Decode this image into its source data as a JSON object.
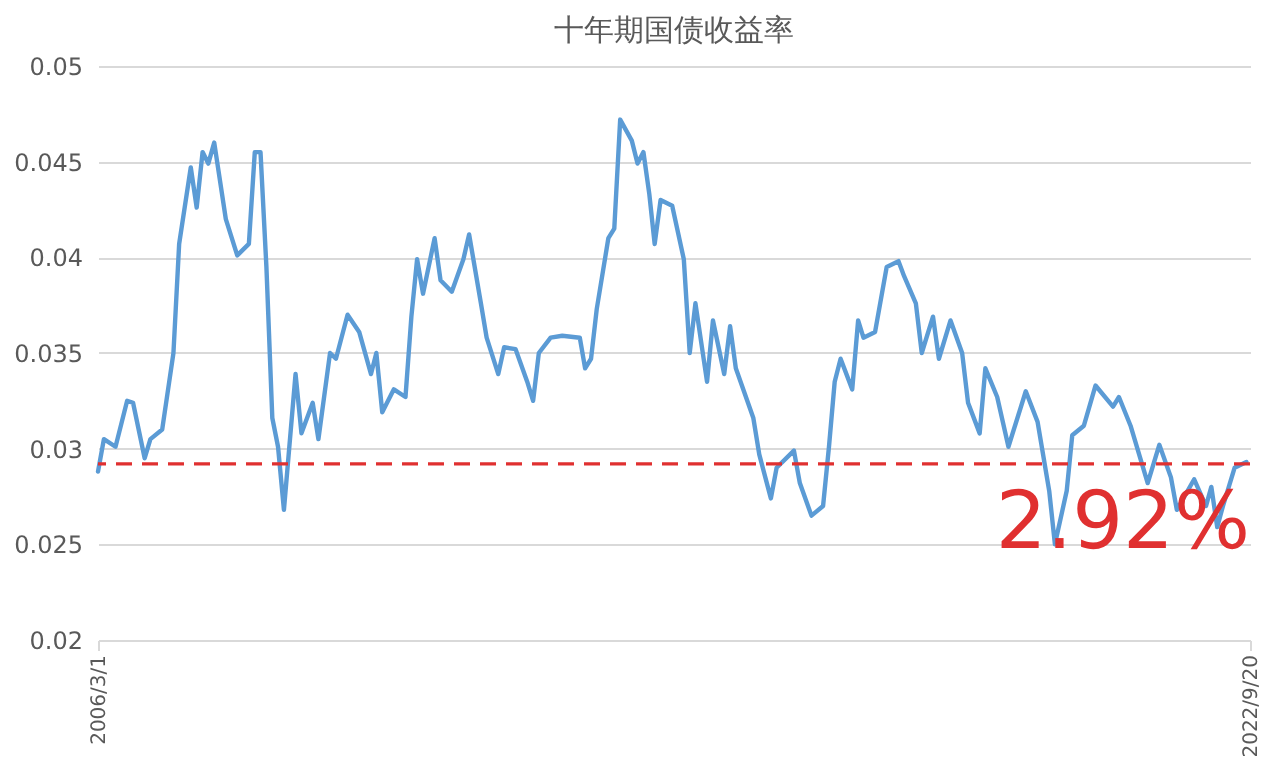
{
  "chart_data": {
    "type": "line",
    "title": "十年期国债收益率",
    "x": [
      "2006-03",
      "2006-04",
      "2006-06",
      "2006-08",
      "2006-09",
      "2006-11",
      "2006-12",
      "2007-02",
      "2007-04",
      "2007-05",
      "2007-07",
      "2007-08",
      "2007-09",
      "2007-10",
      "2007-11",
      "2008-01",
      "2008-03",
      "2008-05",
      "2008-06",
      "2008-07",
      "2008-08",
      "2008-09",
      "2008-10",
      "2008-11",
      "2009-01",
      "2009-02",
      "2009-04",
      "2009-05",
      "2009-07",
      "2009-08",
      "2009-10",
      "2009-12",
      "2010-02",
      "2010-03",
      "2010-04",
      "2010-06",
      "2010-08",
      "2010-09",
      "2010-10",
      "2010-11",
      "2011-01",
      "2011-02",
      "2011-04",
      "2011-06",
      "2011-07",
      "2011-09",
      "2011-10",
      "2011-12",
      "2012-01",
      "2012-03",
      "2012-05",
      "2012-06",
      "2012-07",
      "2012-09",
      "2012-11",
      "2013-02",
      "2013-03",
      "2013-04",
      "2013-05",
      "2013-07",
      "2013-08",
      "2013-09",
      "2013-11",
      "2013-12",
      "2014-01",
      "2014-02",
      "2014-03",
      "2014-04",
      "2014-06",
      "2014-08",
      "2014-09",
      "2014-10",
      "2014-12",
      "2015-01",
      "2015-03",
      "2015-04",
      "2015-05",
      "2015-08",
      "2015-09",
      "2015-11",
      "2015-12",
      "2016-03",
      "2016-04",
      "2016-06",
      "2016-08",
      "2016-09",
      "2016-10",
      "2016-11",
      "2017-01",
      "2017-02",
      "2017-03",
      "2017-05",
      "2017-07",
      "2017-09",
      "2017-10",
      "2017-12",
      "2018-01",
      "2018-03",
      "2018-04",
      "2018-06",
      "2018-08",
      "2018-09",
      "2018-11",
      "2018-12",
      "2019-02",
      "2019-04",
      "2019-07",
      "2019-09",
      "2019-11",
      "2019-12",
      "2020-02",
      "2020-03",
      "2020-05",
      "2020-07",
      "2020-10",
      "2020-11",
      "2021-01",
      "2021-04",
      "2021-06",
      "2021-08",
      "2021-09",
      "2021-12",
      "2022-02",
      "2022-03",
      "2022-04",
      "2022-05",
      "2022-07",
      "2022-09"
    ],
    "series": [
      {
        "color": "#5b9bd5",
        "values": [
          0.0288,
          0.0305,
          0.0301,
          0.0325,
          0.0324,
          0.0295,
          0.0305,
          0.031,
          0.035,
          0.0407,
          0.0447,
          0.0426,
          0.0455,
          0.0449,
          0.046,
          0.042,
          0.0401,
          0.0407,
          0.0455,
          0.0455,
          0.0395,
          0.0316,
          0.0301,
          0.0268,
          0.0339,
          0.0308,
          0.0324,
          0.0305,
          0.035,
          0.0347,
          0.037,
          0.0361,
          0.0339,
          0.035,
          0.0319,
          0.0331,
          0.0327,
          0.0369,
          0.0399,
          0.0381,
          0.041,
          0.0388,
          0.0382,
          0.0399,
          0.0412,
          0.0376,
          0.0358,
          0.0339,
          0.0353,
          0.0352,
          0.0335,
          0.0325,
          0.035,
          0.0358,
          0.0359,
          0.0358,
          0.0342,
          0.0347,
          0.0373,
          0.041,
          0.0415,
          0.0472,
          0.0461,
          0.0449,
          0.0455,
          0.0433,
          0.0407,
          0.043,
          0.0427,
          0.0399,
          0.035,
          0.0376,
          0.0335,
          0.0367,
          0.0339,
          0.0364,
          0.0342,
          0.0316,
          0.0297,
          0.0274,
          0.029,
          0.0299,
          0.0282,
          0.0265,
          0.027,
          0.0301,
          0.0335,
          0.0347,
          0.0331,
          0.0367,
          0.0358,
          0.0361,
          0.0395,
          0.0398,
          0.039,
          0.0376,
          0.035,
          0.0369,
          0.0347,
          0.0367,
          0.035,
          0.0324,
          0.0308,
          0.0342,
          0.0327,
          0.0301,
          0.033,
          0.0314,
          0.0278,
          0.025,
          0.0278,
          0.0307,
          0.0312,
          0.0333,
          0.0322,
          0.0327,
          0.0312,
          0.0282,
          0.0302,
          0.0285,
          0.0268,
          0.0284,
          0.027,
          0.028,
          0.0259,
          0.027,
          0.029,
          0.0293
        ]
      }
    ],
    "xlim": [
      "2006-03-01",
      "2022-09-20"
    ],
    "xticks": [
      {
        "value": "2006-03-01",
        "label": "2006/3/1"
      },
      {
        "value": "2022-09-20",
        "label": "2022/9/20"
      }
    ],
    "ylim": [
      0.02,
      0.05
    ],
    "yticks": [
      0.02,
      0.025,
      0.03,
      0.035,
      0.04,
      0.045,
      0.05
    ],
    "grid": "y",
    "line_style": "solid",
    "ref_lines": [
      {
        "axis": "y",
        "value": 0.0292,
        "label": "2.92%",
        "color": "#e03030",
        "line_style": "dashed"
      }
    ]
  }
}
